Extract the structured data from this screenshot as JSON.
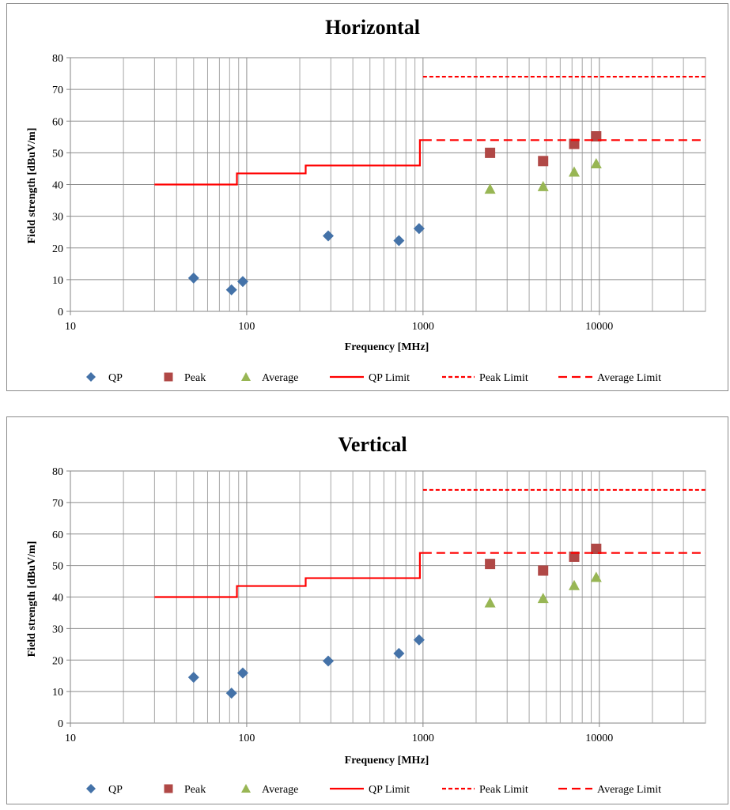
{
  "chart_data": [
    {
      "type": "scatter",
      "title": "Horizontal",
      "xlabel": "Frequency  [MHz]",
      "ylabel": "Field strength [dBuV/m]",
      "x_scale": "log",
      "xlim": [
        10,
        40000
      ],
      "ylim": [
        0,
        80
      ],
      "x_ticks": [
        "10",
        "100",
        "1000",
        "10000"
      ],
      "y_ticks": [
        "0",
        "10",
        "20",
        "30",
        "40",
        "50",
        "60",
        "70",
        "80"
      ],
      "grid": true,
      "legend_position": "bottom",
      "series": [
        {
          "name": "QP",
          "kind": "marker",
          "marker": "diamond",
          "color": "#4472A8",
          "points": [
            [
              50,
              10.5
            ],
            [
              82,
              6.8
            ],
            [
              95,
              9.4
            ],
            [
              290,
              23.8
            ],
            [
              730,
              22.3
            ],
            [
              950,
              26.1
            ]
          ]
        },
        {
          "name": "Peak",
          "kind": "marker",
          "marker": "square",
          "color": "#B04846",
          "points": [
            [
              2400,
              50.0
            ],
            [
              4800,
              47.4
            ],
            [
              7200,
              52.8
            ],
            [
              9600,
              55.2
            ]
          ]
        },
        {
          "name": "Average",
          "kind": "marker",
          "marker": "triangle",
          "color": "#98B654",
          "points": [
            [
              2400,
              38.6
            ],
            [
              4800,
              39.4
            ],
            [
              7200,
              44.0
            ],
            [
              9600,
              46.6
            ]
          ]
        },
        {
          "name": "QP Limit",
          "kind": "line",
          "dash": "solid",
          "color": "#FF0000",
          "points": [
            [
              30,
              40.0
            ],
            [
              88,
              40.0
            ],
            [
              88,
              43.5
            ],
            [
              216,
              43.5
            ],
            [
              216,
              46.0
            ],
            [
              960,
              46.0
            ],
            [
              960,
              54.0
            ],
            [
              1000,
              54.0
            ]
          ]
        },
        {
          "name": "Peak Limit",
          "kind": "line",
          "dash": "short",
          "color": "#FF0000",
          "points": [
            [
              1000,
              74.0
            ],
            [
              40000,
              74.0
            ]
          ]
        },
        {
          "name": "Average Limit",
          "kind": "line",
          "dash": "long",
          "color": "#FF0000",
          "points": [
            [
              1000,
              54.0
            ],
            [
              40000,
              54.0
            ]
          ]
        }
      ]
    },
    {
      "type": "scatter",
      "title": "Vertical",
      "xlabel": "Frequency  [MHz]",
      "ylabel": "Field strength [dBuV/m]",
      "x_scale": "log",
      "xlim": [
        10,
        40000
      ],
      "ylim": [
        0,
        80
      ],
      "x_ticks": [
        "10",
        "100",
        "1000",
        "10000"
      ],
      "y_ticks": [
        "0",
        "10",
        "20",
        "30",
        "40",
        "50",
        "60",
        "70",
        "80"
      ],
      "grid": true,
      "legend_position": "bottom",
      "series": [
        {
          "name": "QP",
          "kind": "marker",
          "marker": "diamond",
          "color": "#4472A8",
          "points": [
            [
              50,
              14.5
            ],
            [
              82,
              9.5
            ],
            [
              95,
              15.9
            ],
            [
              290,
              19.7
            ],
            [
              730,
              22.1
            ],
            [
              950,
              26.4
            ]
          ]
        },
        {
          "name": "Peak",
          "kind": "marker",
          "marker": "square",
          "color": "#B04846",
          "points": [
            [
              2400,
              50.5
            ],
            [
              4800,
              48.4
            ],
            [
              7200,
              52.8
            ],
            [
              9600,
              55.3
            ]
          ]
        },
        {
          "name": "Average",
          "kind": "marker",
          "marker": "triangle",
          "color": "#98B654",
          "points": [
            [
              2400,
              38.2
            ],
            [
              4800,
              39.6
            ],
            [
              7200,
              43.7
            ],
            [
              9600,
              46.3
            ]
          ]
        },
        {
          "name": "QP Limit",
          "kind": "line",
          "dash": "solid",
          "color": "#FF0000",
          "points": [
            [
              30,
              40.0
            ],
            [
              88,
              40.0
            ],
            [
              88,
              43.5
            ],
            [
              216,
              43.5
            ],
            [
              216,
              46.0
            ],
            [
              960,
              46.0
            ],
            [
              960,
              54.0
            ],
            [
              1000,
              54.0
            ]
          ]
        },
        {
          "name": "Peak Limit",
          "kind": "line",
          "dash": "short",
          "color": "#FF0000",
          "points": [
            [
              1000,
              74.0
            ],
            [
              40000,
              74.0
            ]
          ]
        },
        {
          "name": "Average Limit",
          "kind": "line",
          "dash": "long",
          "color": "#FF0000",
          "points": [
            [
              1000,
              54.0
            ],
            [
              40000,
              54.0
            ]
          ]
        }
      ]
    }
  ]
}
